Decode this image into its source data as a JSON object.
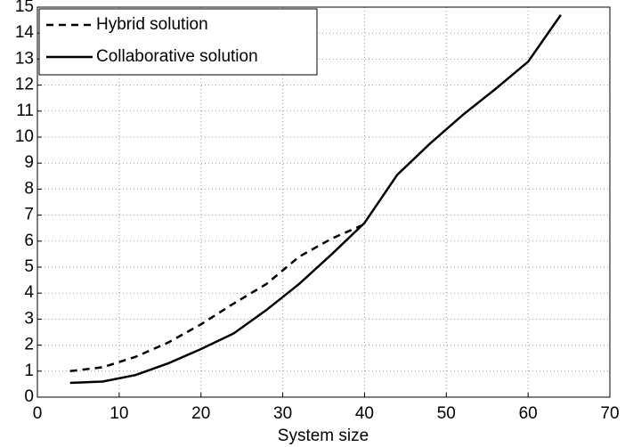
{
  "chart_data": {
    "type": "line",
    "x": [
      4,
      8,
      12,
      16,
      20,
      24,
      28,
      32,
      36,
      40,
      44,
      48,
      52,
      56,
      60,
      64
    ],
    "series": [
      {
        "name": "Hybrid solution",
        "color": "#000000",
        "style": "dashed",
        "values": [
          1.0,
          1.15,
          1.55,
          2.1,
          2.8,
          3.6,
          4.35,
          5.4,
          6.1,
          6.65,
          null,
          null,
          null,
          null,
          null,
          null
        ]
      },
      {
        "name": "Collaborative solution",
        "color": "#000000",
        "style": "solid",
        "values": [
          0.55,
          0.6,
          0.85,
          1.3,
          1.85,
          2.45,
          3.35,
          4.35,
          5.5,
          6.7,
          8.55,
          9.75,
          10.85,
          11.85,
          12.9,
          14.7
        ]
      }
    ],
    "xlabel": "System size",
    "xlim": [
      0,
      70
    ],
    "xticks": [
      0,
      10,
      20,
      30,
      40,
      50,
      60,
      70
    ],
    "ylim": [
      0,
      15
    ],
    "yticks": [
      0,
      1,
      2,
      3,
      4,
      5,
      6,
      7,
      8,
      9,
      10,
      11,
      12,
      13,
      14,
      15
    ],
    "grid": true,
    "legend": "upper left"
  }
}
